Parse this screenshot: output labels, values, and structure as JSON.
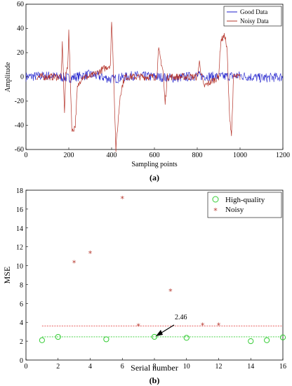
{
  "chart_data": [
    {
      "type": "line",
      "panel_label": "(a)",
      "xlabel": "Sampling points",
      "ylabel": "Amplitude",
      "xlim": [
        0,
        1200
      ],
      "ylim": [
        -60,
        60
      ],
      "xticks": [
        0,
        200,
        400,
        600,
        800,
        1000,
        1200
      ],
      "yticks": [
        -60,
        -40,
        -20,
        0,
        20,
        40,
        60
      ],
      "legend_position": "top-right",
      "colors": {
        "good": "#1f1fcc",
        "noisy": "#b5342a"
      },
      "series": [
        {
          "name": "Good Data",
          "description_points": {
            "x": [
              0,
              100,
              200,
              300,
              400,
              500,
              600,
              700,
              800,
              900,
              1000,
              1100,
              1200
            ],
            "y": [
              0,
              1,
              -1,
              2,
              -2,
              1,
              0,
              -1,
              1,
              0,
              1,
              -1,
              0
            ]
          },
          "noise_amplitude": 4
        },
        {
          "name": "Noisy Data",
          "x": [
            50,
            165,
            170,
            180,
            185,
            195,
            200,
            205,
            215,
            230,
            240,
            260,
            300,
            395,
            400,
            408,
            420,
            440,
            460,
            610,
            620,
            640,
            650,
            660,
            800,
            810,
            830,
            900,
            910,
            930,
            940,
            950,
            960,
            970,
            1000
          ],
          "y": [
            0,
            0,
            28,
            -31,
            0,
            10,
            37,
            10,
            -46,
            -40,
            -10,
            0,
            0,
            10,
            48,
            10,
            -60,
            -15,
            0,
            0,
            22,
            5,
            -22,
            0,
            0,
            12,
            -8,
            0,
            30,
            34,
            20,
            -30,
            -48,
            0,
            0
          ],
          "noise_amplitude": 3
        }
      ]
    },
    {
      "type": "scatter",
      "panel_label": "(b)",
      "xlabel": "Serial number",
      "ylabel": "MSE",
      "xlim": [
        0,
        16
      ],
      "ylim": [
        0,
        18
      ],
      "xticks": [
        0,
        2,
        4,
        6,
        8,
        10,
        12,
        14,
        16
      ],
      "yticks": [
        0,
        2,
        4,
        6,
        8,
        10,
        12,
        14,
        16,
        18
      ],
      "legend_position": "top-right",
      "colors": {
        "high": "#33cc33",
        "noisy": "#b5342a",
        "high_line": "#33cc33",
        "noisy_line": "#e03030"
      },
      "series": [
        {
          "name": "High-quality",
          "x": [
            1,
            2,
            5,
            8,
            10,
            14,
            15,
            16
          ],
          "y": [
            2.1,
            2.45,
            2.2,
            2.46,
            2.35,
            2.0,
            2.1,
            2.4
          ]
        },
        {
          "name": "Noisy",
          "x": [
            3,
            4,
            6,
            7,
            9,
            11,
            12
          ],
          "y": [
            10.3,
            11.3,
            17.1,
            3.6,
            7.3,
            3.7,
            3.7
          ]
        }
      ],
      "reference_lines": [
        {
          "y": 2.46,
          "style": "dashed",
          "series": "High-quality"
        },
        {
          "y": 3.6,
          "style": "dashed",
          "series": "Noisy"
        }
      ],
      "annotations": [
        {
          "text": "2.46",
          "x": 8,
          "y": 2.46
        }
      ]
    }
  ]
}
